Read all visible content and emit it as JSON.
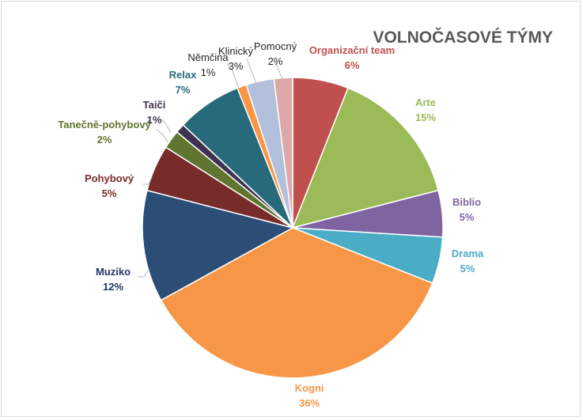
{
  "chart_data": {
    "type": "pie",
    "title": "VOLNOČASOVÉ TÝMY",
    "start_angle_deg": 0,
    "direction": "clockwise",
    "slices": [
      {
        "label": "Organizační team",
        "value": 6,
        "value_label": "6%",
        "color": "#c0504d",
        "label_color": "#c0504d",
        "bold": true
      },
      {
        "label": "Arte",
        "value": 15,
        "value_label": "15%",
        "color": "#9bbb59",
        "label_color": "#9bbb59",
        "bold": true
      },
      {
        "label": "Biblio",
        "value": 5,
        "value_label": "5%",
        "color": "#8064a2",
        "label_color": "#8064a2",
        "bold": true
      },
      {
        "label": "Drama",
        "value": 5,
        "value_label": "5%",
        "color": "#4bacc6",
        "label_color": "#4bacc6",
        "bold": true
      },
      {
        "label": "Kogni",
        "value": 36,
        "value_label": "36%",
        "color": "#f79646",
        "label_color": "#f79646",
        "bold": true
      },
      {
        "label": "Muziko",
        "value": 12,
        "value_label": "12%",
        "color": "#2c4d75",
        "label_color": "#1f3864",
        "bold": true
      },
      {
        "label": "Pohybový",
        "value": 5,
        "value_label": "5%",
        "color": "#772c2a",
        "label_color": "#7b2b2a",
        "bold": true
      },
      {
        "label": "Tanečně-pohybový",
        "value": 2,
        "value_label": "2%",
        "color": "#5f7530",
        "label_color": "#5f7530",
        "bold": true
      },
      {
        "label": "Taiči",
        "value": 1,
        "value_label": "1%",
        "color": "#3f3151",
        "label_color": "#3f3151",
        "bold": true
      },
      {
        "label": "Relax",
        "value": 7,
        "value_label": "7%",
        "color": "#276a7c",
        "label_color": "#276a7c",
        "bold": true
      },
      {
        "label": "Němčina",
        "value": 1,
        "value_label": "1%",
        "color": "#f79646",
        "label_color": "#262626",
        "bold": false
      },
      {
        "label": "Klinický",
        "value": 3,
        "value_label": "3%",
        "color": "#b3c0dc",
        "label_color": "#262626",
        "bold": false
      },
      {
        "label": "Pomocný",
        "value": 2,
        "value_label": "2%",
        "color": "#dda9a8",
        "label_color": "#262626",
        "bold": false
      }
    ]
  }
}
